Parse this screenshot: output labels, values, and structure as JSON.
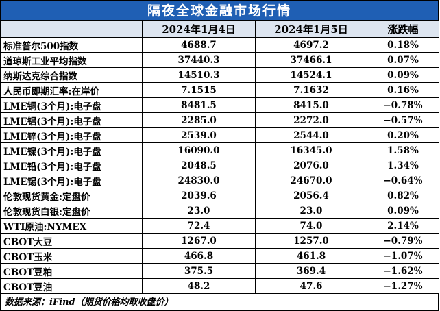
{
  "title": "隔夜全球金融市场行情",
  "table": {
    "header": [
      "",
      "2024年1月4日",
      "2024年1月5日",
      "涨跌幅"
    ],
    "rows": [
      [
        "标准普尔500指数",
        "4688.7",
        "4697.2",
        "0.18%"
      ],
      [
        "道琼斯工业平均指数",
        "37440.3",
        "37466.1",
        "0.07%"
      ],
      [
        "纳斯达克综合指数",
        "14510.3",
        "14524.1",
        "0.09%"
      ],
      [
        "人民币即期汇率:在岸价",
        "7.1515",
        "7.1632",
        "0.16%"
      ],
      [
        "LME铜(3个月):电子盘",
        "8481.5",
        "8415.0",
        "−0.78%"
      ],
      [
        "LME铝(3个月):电子盘",
        "2285.0",
        "2272.0",
        "−0.57%"
      ],
      [
        "LME锌(3个月):电子盘",
        "2539.0",
        "2544.0",
        "0.20%"
      ],
      [
        "LME镍(3个月):电子盘",
        "16090.0",
        "16345.0",
        "1.58%"
      ],
      [
        "LME铅(3个月):电子盘",
        "2048.5",
        "2076.0",
        "1.34%"
      ],
      [
        "LME锡(3个月):电子盘",
        "24830.0",
        "24670.0",
        "−0.64%"
      ],
      [
        "伦敦现货黄金:定盘价",
        "2039.6",
        "2056.4",
        "0.82%"
      ],
      [
        "伦敦现货白银:定盘价",
        "23.0",
        "23.0",
        "0.09%"
      ],
      [
        "WTI原油:NYMEX",
        "72.4",
        "74.0",
        "2.14%"
      ],
      [
        "CBOT大豆",
        "1267.0",
        "1257.0",
        "−0.79%"
      ],
      [
        "CBOT玉米",
        "466.8",
        "461.8",
        "−1.07%"
      ],
      [
        "CBOT豆粕",
        "375.5",
        "369.4",
        "−1.62%"
      ],
      [
        "CBOT豆油",
        "48.2",
        "47.6",
        "−1.27%"
      ]
    ]
  },
  "footer": "数据来源：iFind（期货价格均取收盘价）"
}
